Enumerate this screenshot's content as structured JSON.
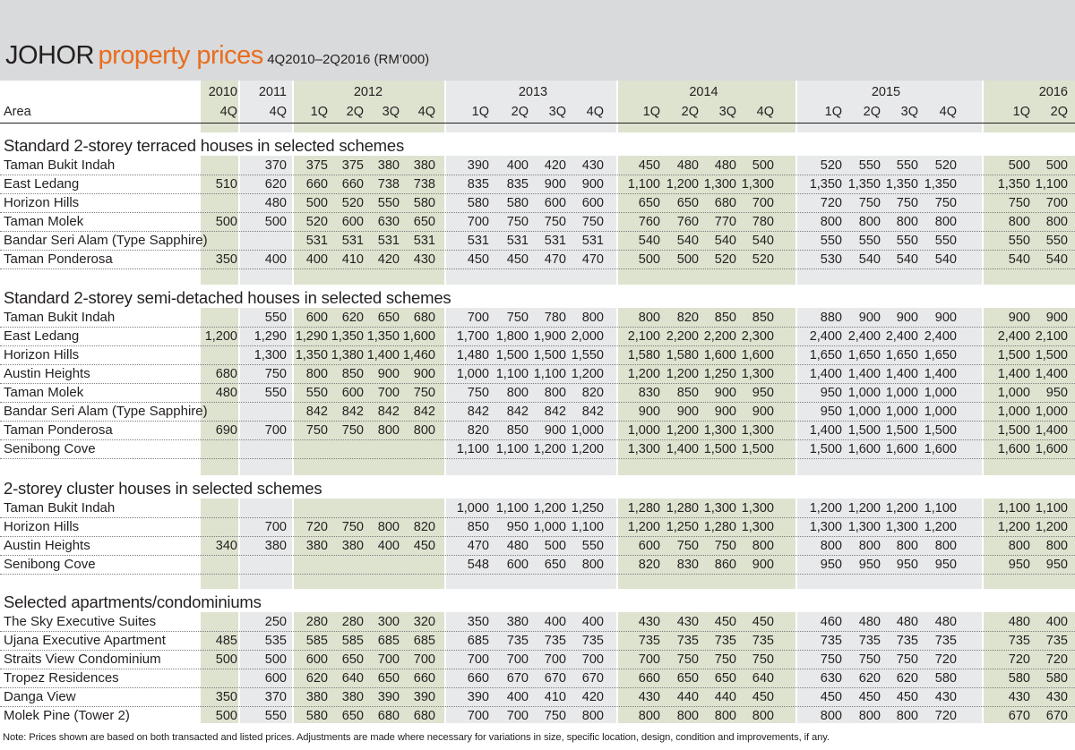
{
  "title": {
    "main": "JOHOR",
    "highlight": "property prices",
    "sub": "4Q2010–2Q2016 (RM’000)"
  },
  "columns": {
    "area_label": "Area",
    "years": [
      {
        "year": "2010",
        "quarters": [
          "4Q"
        ]
      },
      {
        "year": "2011",
        "quarters": [
          "4Q"
        ]
      },
      {
        "year": "2012",
        "quarters": [
          "1Q",
          "2Q",
          "3Q",
          "4Q"
        ]
      },
      {
        "year": "2013",
        "quarters": [
          "1Q",
          "2Q",
          "3Q",
          "4Q"
        ]
      },
      {
        "year": "2014",
        "quarters": [
          "1Q",
          "2Q",
          "3Q",
          "4Q"
        ]
      },
      {
        "year": "2015",
        "quarters": [
          "1Q",
          "2Q",
          "3Q",
          "4Q"
        ]
      },
      {
        "year": "2016",
        "quarters": [
          "1Q",
          "2Q"
        ]
      }
    ]
  },
  "sections": [
    {
      "title": "Standard 2-storey terraced houses in selected schemes",
      "rows": [
        {
          "area": "Taman Bukit Indah",
          "values": [
            "",
            "370",
            "375",
            "375",
            "380",
            "380",
            "390",
            "400",
            "420",
            "430",
            "450",
            "480",
            "480",
            "500",
            "520",
            "550",
            "550",
            "520",
            "500",
            "500"
          ]
        },
        {
          "area": "East Ledang",
          "values": [
            "510",
            "620",
            "660",
            "660",
            "738",
            "738",
            "835",
            "835",
            "900",
            "900",
            "1,100",
            "1,200",
            "1,300",
            "1,300",
            "1,350",
            "1,350",
            "1,350",
            "1,350",
            "1,350",
            "1,100"
          ]
        },
        {
          "area": "Horizon Hills",
          "values": [
            "",
            "480",
            "500",
            "520",
            "550",
            "580",
            "580",
            "580",
            "600",
            "600",
            "650",
            "650",
            "680",
            "700",
            "720",
            "750",
            "750",
            "750",
            "750",
            "700"
          ]
        },
        {
          "area": "Taman Molek",
          "values": [
            "500",
            "500",
            "520",
            "600",
            "630",
            "650",
            "700",
            "750",
            "750",
            "750",
            "760",
            "760",
            "770",
            "780",
            "800",
            "800",
            "800",
            "800",
            "800",
            "800"
          ]
        },
        {
          "area": "Bandar Seri Alam (Type Sapphire)",
          "values": [
            "",
            "",
            "531",
            "531",
            "531",
            "531",
            "531",
            "531",
            "531",
            "531",
            "540",
            "540",
            "540",
            "540",
            "550",
            "550",
            "550",
            "550",
            "550",
            "550"
          ]
        },
        {
          "area": "Taman Ponderosa",
          "values": [
            "350",
            "400",
            "400",
            "410",
            "420",
            "430",
            "450",
            "450",
            "470",
            "470",
            "500",
            "500",
            "520",
            "520",
            "530",
            "540",
            "540",
            "540",
            "540",
            "540"
          ]
        }
      ]
    },
    {
      "title": "Standard 2-storey semi-detached houses in selected schemes",
      "rows": [
        {
          "area": "Taman Bukit Indah",
          "values": [
            "",
            "550",
            "600",
            "620",
            "650",
            "680",
            "700",
            "750",
            "780",
            "800",
            "800",
            "820",
            "850",
            "850",
            "880",
            "900",
            "900",
            "900",
            "900",
            "900"
          ]
        },
        {
          "area": "East Ledang",
          "values": [
            "1,200",
            "1,290",
            "1,290",
            "1,350",
            "1,350",
            "1,600",
            "1,700",
            "1,800",
            "1,900",
            "2,000",
            "2,100",
            "2,200",
            "2,200",
            "2,300",
            "2,400",
            "2,400",
            "2,400",
            "2,400",
            "2,400",
            "2,100"
          ]
        },
        {
          "area": "Horizon Hills",
          "values": [
            "",
            "1,300",
            "1,350",
            "1,380",
            "1,400",
            "1,460",
            "1,480",
            "1,500",
            "1,500",
            "1,550",
            "1,580",
            "1,580",
            "1,600",
            "1,600",
            "1,650",
            "1,650",
            "1,650",
            "1,650",
            "1,500",
            "1,500"
          ]
        },
        {
          "area": "Austin Heights",
          "values": [
            "680",
            "750",
            "800",
            "850",
            "900",
            "900",
            "1,000",
            "1,100",
            "1,100",
            "1,200",
            "1,200",
            "1,200",
            "1,250",
            "1,300",
            "1,400",
            "1,400",
            "1,400",
            "1,400",
            "1,400",
            "1,400"
          ]
        },
        {
          "area": "Taman Molek",
          "values": [
            "480",
            "550",
            "550",
            "600",
            "700",
            "750",
            "750",
            "800",
            "800",
            "820",
            "830",
            "850",
            "900",
            "950",
            "950",
            "1,000",
            "1,000",
            "1,000",
            "1,000",
            "950"
          ]
        },
        {
          "area": "Bandar Seri Alam (Type Sapphire)",
          "values": [
            "",
            "",
            "842",
            "842",
            "842",
            "842",
            "842",
            "842",
            "842",
            "842",
            "900",
            "900",
            "900",
            "900",
            "950",
            "1,000",
            "1,000",
            "1,000",
            "1,000",
            "1,000"
          ]
        },
        {
          "area": "Taman Ponderosa",
          "values": [
            "690",
            "700",
            "750",
            "750",
            "800",
            "800",
            "820",
            "850",
            "900",
            "1,000",
            "1,000",
            "1,200",
            "1,300",
            "1,300",
            "1,400",
            "1,500",
            "1,500",
            "1,500",
            "1,500",
            "1,400"
          ]
        },
        {
          "area": "Senibong Cove",
          "values": [
            "",
            "",
            "",
            "",
            "",
            "",
            "1,100",
            "1,100",
            "1,200",
            "1,200",
            "1,300",
            "1,400",
            "1,500",
            "1,500",
            "1,500",
            "1,600",
            "1,600",
            "1,600",
            "1,600",
            "1,600"
          ]
        }
      ]
    },
    {
      "title": "2-storey cluster houses in selected schemes",
      "rows": [
        {
          "area": "Taman Bukit Indah",
          "values": [
            "",
            "",
            "",
            "",
            "",
            "",
            "1,000",
            "1,100",
            "1,200",
            "1,250",
            "1,280",
            "1,280",
            "1,300",
            "1,300",
            "1,200",
            "1,200",
            "1,200",
            "1,100",
            "1,100",
            "1,100"
          ]
        },
        {
          "area": "Horizon Hills",
          "values": [
            "",
            "700",
            "720",
            "750",
            "800",
            "820",
            "850",
            "950",
            "1,000",
            "1,100",
            "1,200",
            "1,250",
            "1,280",
            "1,300",
            "1,300",
            "1,300",
            "1,300",
            "1,200",
            "1,200",
            "1,200"
          ]
        },
        {
          "area": "Austin Heights",
          "values": [
            "340",
            "380",
            "380",
            "380",
            "400",
            "450",
            "470",
            "480",
            "500",
            "550",
            "600",
            "750",
            "750",
            "800",
            "800",
            "800",
            "800",
            "800",
            "800",
            "800"
          ]
        },
        {
          "area": "Senibong Cove",
          "values": [
            "",
            "",
            "",
            "",
            "",
            "",
            "548",
            "600",
            "650",
            "800",
            "820",
            "830",
            "860",
            "900",
            "950",
            "950",
            "950",
            "950",
            "950",
            "950"
          ]
        }
      ]
    },
    {
      "title": "Selected apartments/condominiums",
      "rows": [
        {
          "area": "The Sky Executive Suites",
          "values": [
            "",
            "250",
            "280",
            "280",
            "300",
            "320",
            "350",
            "380",
            "400",
            "400",
            "430",
            "430",
            "450",
            "450",
            "460",
            "480",
            "480",
            "480",
            "480",
            "400"
          ]
        },
        {
          "area": "Ujana Executive Apartment",
          "values": [
            "485",
            "535",
            "585",
            "585",
            "685",
            "685",
            "685",
            "735",
            "735",
            "735",
            "735",
            "735",
            "735",
            "735",
            "735",
            "735",
            "735",
            "735",
            "735",
            "735"
          ]
        },
        {
          "area": "Straits View Condominium",
          "values": [
            "500",
            "500",
            "600",
            "650",
            "700",
            "700",
            "700",
            "700",
            "700",
            "700",
            "700",
            "750",
            "750",
            "750",
            "750",
            "750",
            "750",
            "720",
            "720",
            "720"
          ]
        },
        {
          "area": "Tropez Residences",
          "values": [
            "",
            "600",
            "620",
            "640",
            "650",
            "660",
            "660",
            "670",
            "670",
            "670",
            "660",
            "650",
            "650",
            "640",
            "630",
            "620",
            "620",
            "580",
            "580",
            "580"
          ]
        },
        {
          "area": "Danga View",
          "values": [
            "350",
            "370",
            "380",
            "380",
            "390",
            "390",
            "390",
            "400",
            "410",
            "420",
            "430",
            "440",
            "440",
            "450",
            "450",
            "450",
            "450",
            "430",
            "430",
            "430"
          ]
        },
        {
          "area": "Molek Pine (Tower 2)",
          "values": [
            "500",
            "550",
            "580",
            "650",
            "680",
            "680",
            "700",
            "700",
            "750",
            "800",
            "800",
            "800",
            "800",
            "800",
            "800",
            "800",
            "800",
            "720",
            "670",
            "670"
          ]
        }
      ]
    }
  ],
  "note": "Note: Prices shown are based on both transacted and listed prices. Adjustments are made where necessary for variations in size, specific location, design, condition and improvements, if any.",
  "colors": {
    "header_bg": "#d9dadb",
    "accent": "#e86d1f",
    "band_green": "#dde3cf",
    "band_grey": "#e8e9ea"
  }
}
